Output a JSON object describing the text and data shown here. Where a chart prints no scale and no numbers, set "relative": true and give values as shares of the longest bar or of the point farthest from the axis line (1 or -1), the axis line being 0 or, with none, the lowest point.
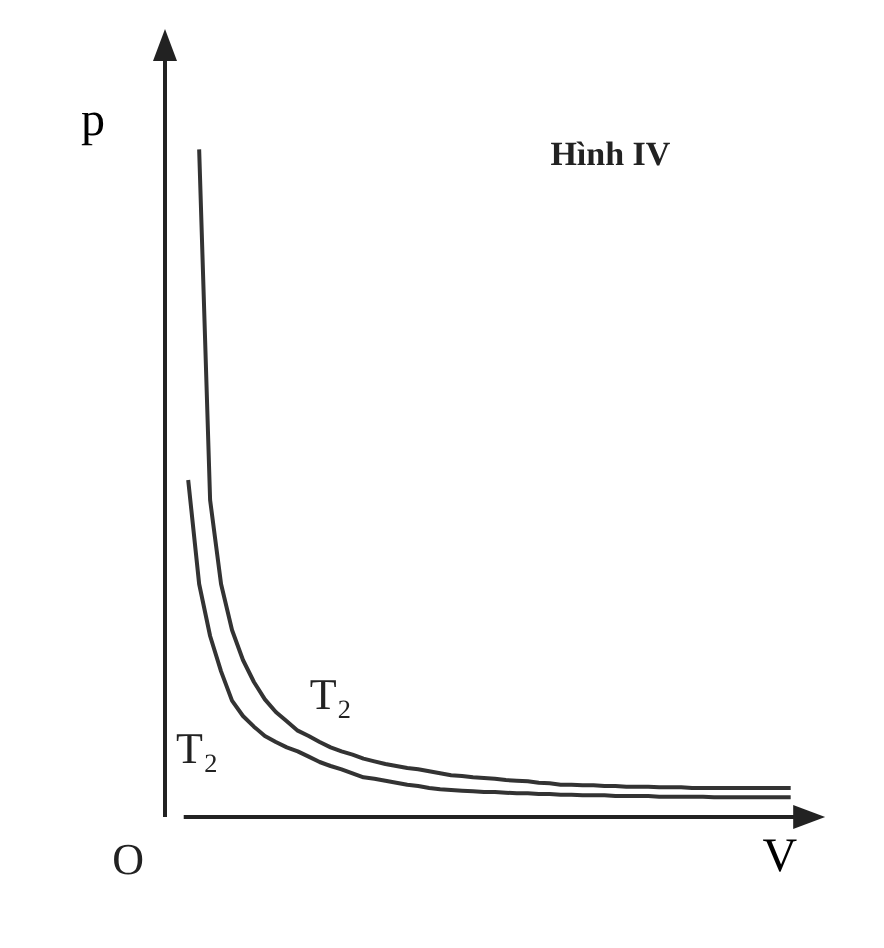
{
  "chart_data": {
    "type": "line",
    "relative": true,
    "xlabel": "V",
    "ylabel": "p",
    "annotations": [
      "Hình IV",
      "O"
    ],
    "tick_labels": false,
    "marker": "none",
    "line_style": "solid",
    "categories": [
      null,
      null,
      null,
      null,
      null,
      null,
      null,
      null,
      null,
      null,
      null,
      null,
      null,
      null,
      null,
      null,
      null,
      null,
      null,
      null,
      null,
      null,
      null,
      null,
      null,
      null,
      null,
      null,
      null,
      null,
      null,
      null,
      null,
      null,
      null,
      null,
      null,
      null,
      null,
      null,
      null,
      null,
      null,
      null,
      null,
      null,
      null,
      null,
      null,
      null,
      null,
      null,
      null,
      null,
      null,
      null
    ],
    "series": [
      {
        "name": "T₂",
        "color": "#333333",
        "values": [
          null,
          1.0,
          0.474,
          0.348,
          0.279,
          0.234,
          0.201,
          0.175,
          0.156,
          0.142,
          0.128,
          0.12,
          0.111,
          0.103,
          0.097,
          0.092,
          0.086,
          0.082,
          0.078,
          0.075,
          0.072,
          0.07,
          0.067,
          0.064,
          0.061,
          0.06,
          0.058,
          0.057,
          0.056,
          0.054,
          0.053,
          0.052,
          0.05,
          0.049,
          0.047,
          0.047,
          0.046,
          0.046,
          0.045,
          0.045,
          0.044,
          0.044,
          0.044,
          0.043,
          0.043,
          0.043,
          0.042,
          0.042,
          0.042,
          0.042,
          0.042,
          0.042,
          0.042,
          0.042,
          0.042,
          0.042
        ]
      },
      {
        "name": "T₂",
        "color": "#333333",
        "values": [
          0.504,
          0.348,
          0.27,
          0.217,
          0.173,
          0.15,
          0.134,
          0.12,
          0.111,
          0.103,
          0.097,
          0.089,
          0.081,
          0.075,
          0.07,
          0.064,
          0.058,
          0.056,
          0.053,
          0.05,
          0.047,
          0.045,
          0.042,
          0.04,
          0.039,
          0.038,
          0.037,
          0.036,
          0.036,
          0.035,
          0.034,
          0.034,
          0.033,
          0.033,
          0.032,
          0.032,
          0.031,
          0.031,
          0.031,
          0.03,
          0.03,
          0.03,
          0.03,
          0.029,
          0.029,
          0.029,
          0.029,
          0.029,
          0.028,
          0.028,
          0.028,
          0.028,
          0.028,
          0.028,
          0.028,
          0.028
        ]
      }
    ]
  }
}
